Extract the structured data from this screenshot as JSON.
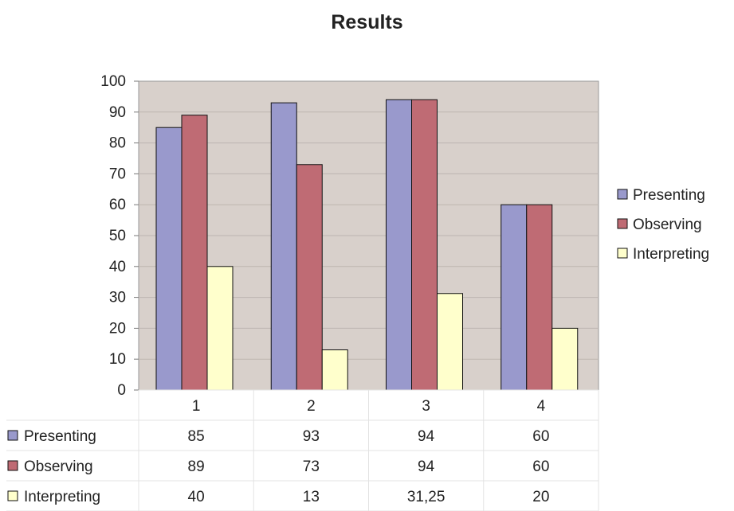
{
  "chart_data": {
    "type": "bar",
    "title": "Results",
    "categories": [
      "1",
      "2",
      "3",
      "4"
    ],
    "series": [
      {
        "name": "Presenting",
        "values": [
          85,
          93,
          94,
          60
        ],
        "labels": [
          "85",
          "93",
          "94",
          "60"
        ],
        "color": "#9999CC"
      },
      {
        "name": "Observing",
        "values": [
          89,
          73,
          94,
          60
        ],
        "labels": [
          "89",
          "73",
          "94",
          "60"
        ],
        "color": "#BF6B74"
      },
      {
        "name": "Interpreting",
        "values": [
          40,
          13,
          31.25,
          20
        ],
        "labels": [
          "40",
          "13",
          "31,25",
          "20"
        ],
        "color": "#FFFFCC"
      }
    ],
    "ylim": [
      0,
      100
    ],
    "yticks": [
      0,
      10,
      20,
      30,
      40,
      50,
      60,
      70,
      80,
      90,
      100
    ],
    "grid": true,
    "plot_background": "#D8D0CB",
    "legend_position": "right",
    "data_table": true
  }
}
